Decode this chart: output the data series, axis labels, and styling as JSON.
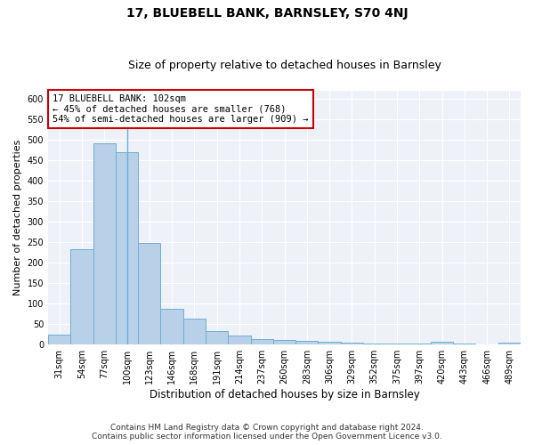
{
  "title": "17, BLUEBELL BANK, BARNSLEY, S70 4NJ",
  "subtitle": "Size of property relative to detached houses in Barnsley",
  "xlabel": "Distribution of detached houses by size in Barnsley",
  "ylabel": "Number of detached properties",
  "categories": [
    "31sqm",
    "54sqm",
    "77sqm",
    "100sqm",
    "123sqm",
    "146sqm",
    "168sqm",
    "191sqm",
    "214sqm",
    "237sqm",
    "260sqm",
    "283sqm",
    "306sqm",
    "329sqm",
    "352sqm",
    "375sqm",
    "397sqm",
    "420sqm",
    "443sqm",
    "466sqm",
    "489sqm"
  ],
  "values": [
    25,
    233,
    490,
    470,
    248,
    88,
    63,
    33,
    23,
    13,
    12,
    10,
    8,
    5,
    3,
    3,
    3,
    7,
    2,
    1,
    5
  ],
  "bar_color": "#b8d0e8",
  "bar_edge_color": "#6baed6",
  "highlight_index": 3,
  "annotation_box_text": "17 BLUEBELL BANK: 102sqm\n← 45% of detached houses are smaller (768)\n54% of semi-detached houses are larger (909) →",
  "annotation_box_color": "#ffffff",
  "annotation_box_edge_color": "#cc0000",
  "ylim": [
    0,
    620
  ],
  "yticks": [
    0,
    50,
    100,
    150,
    200,
    250,
    300,
    350,
    400,
    450,
    500,
    550,
    600
  ],
  "background_color": "#eef2f8",
  "grid_color": "#ffffff",
  "footer_text": "Contains HM Land Registry data © Crown copyright and database right 2024.\nContains public sector information licensed under the Open Government Licence v3.0.",
  "title_fontsize": 10,
  "subtitle_fontsize": 9,
  "xlabel_fontsize": 8.5,
  "ylabel_fontsize": 8,
  "tick_fontsize": 7,
  "annotation_fontsize": 7.5,
  "footer_fontsize": 6.5
}
